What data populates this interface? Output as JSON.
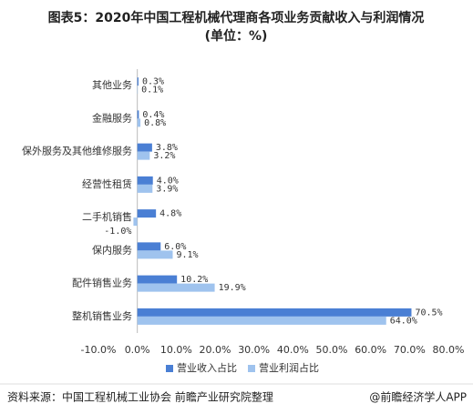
{
  "chart_data": {
    "type": "hbar",
    "title": "图表5：2020年中国工程机械代理商各项业务贡献收入与利润情况",
    "subtitle": "(单位：%)",
    "categories": [
      "其他业务",
      "金融服务",
      "保外服务及其他维修服务",
      "经营性租赁",
      "二手机销售",
      "保内服务",
      "配件销售业务",
      "整机销售业务"
    ],
    "series": [
      {
        "name": "营业收入占比",
        "color": "#4a7fd4",
        "values": [
          0.3,
          0.4,
          3.8,
          4.0,
          4.8,
          6.0,
          10.2,
          70.5
        ],
        "value_labels": [
          "0.3%",
          "0.4%",
          "3.8%",
          "4.0%",
          "4.8%",
          "6.0%",
          "10.2%",
          "70.5%"
        ]
      },
      {
        "name": "营业利润占比",
        "color": "#9fc3ee",
        "values": [
          0.1,
          0.8,
          3.2,
          3.9,
          -1.0,
          9.1,
          19.9,
          64.0
        ],
        "value_labels": [
          "0.1%",
          "0.8%",
          "3.2%",
          "3.9%",
          "-1.0%",
          "9.1%",
          "19.9%",
          "64.0%"
        ]
      }
    ],
    "xlim": [
      -10,
      80
    ],
    "xticks": [
      {
        "value": -10,
        "label": "-10.0%"
      },
      {
        "value": 0,
        "label": "0.0%"
      },
      {
        "value": 10,
        "label": "10.0%"
      },
      {
        "value": 20,
        "label": "20.0%"
      },
      {
        "value": 30,
        "label": "30.0%"
      },
      {
        "value": 40,
        "label": "40.0%"
      },
      {
        "value": 50,
        "label": "50.0%"
      },
      {
        "value": 60,
        "label": "60.0%"
      },
      {
        "value": 70,
        "label": "70.0%"
      },
      {
        "value": 80,
        "label": "80.0%"
      }
    ],
    "legend": "bottom",
    "source": "资料来源：中国工程机械工业协会 前瞻产业研究院整理",
    "credit": "@前瞻经济学人APP"
  }
}
